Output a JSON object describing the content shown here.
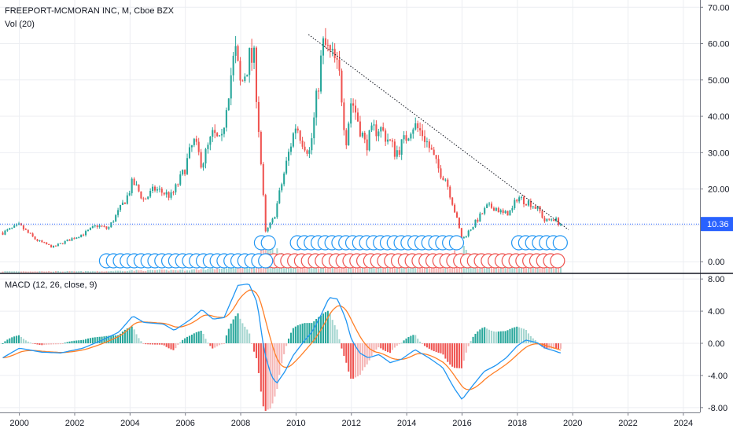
{
  "legend": {
    "title": "FREEPORT-MCMORAN INC, M, Cboe BZX",
    "volume": "Vol (20)",
    "macd": "MACD (12, 26, close, 9)"
  },
  "price_badge": "10.36",
  "colors": {
    "up": "#26a69a",
    "down": "#ef5350",
    "vol_up": "#a5d6d0",
    "vol_down": "#f5b5b5",
    "macd_line": "#2196f3",
    "signal_line": "#ff7f27",
    "price_line": "#2962ff",
    "trend_line": "#131722",
    "grid": "#eceef2",
    "axis_text": "#131722",
    "event_blue": "#2196f3",
    "event_red": "#ef5350"
  },
  "chart_data": [
    {
      "type": "candlestick",
      "name": "price",
      "y_ticks": [
        "70.00",
        "60.00",
        "50.00",
        "40.00",
        "30.00",
        "20.00",
        "10.00",
        "0.00"
      ],
      "y_range": [
        -3,
        72
      ],
      "x_range": [
        1999.3,
        2024.6
      ],
      "x_ticks": [
        "2000",
        "2002",
        "2004",
        "2006",
        "2008",
        "2010",
        "2012",
        "2014",
        "2016",
        "2018",
        "2020",
        "2022",
        "2024"
      ],
      "last_price": 10.36,
      "anchors": [
        [
          1999.4,
          8
        ],
        [
          2000.0,
          10
        ],
        [
          2000.6,
          6
        ],
        [
          2001.2,
          4
        ],
        [
          2001.8,
          6
        ],
        [
          2002.4,
          8
        ],
        [
          2002.8,
          10
        ],
        [
          2003.2,
          9
        ],
        [
          2003.6,
          14
        ],
        [
          2003.9,
          18
        ],
        [
          2004.1,
          22
        ],
        [
          2004.5,
          17
        ],
        [
          2004.9,
          20
        ],
        [
          2005.5,
          18
        ],
        [
          2005.9,
          24
        ],
        [
          2006.3,
          33
        ],
        [
          2006.6,
          27
        ],
        [
          2007.0,
          35
        ],
        [
          2007.3,
          32
        ],
        [
          2007.5,
          45
        ],
        [
          2007.8,
          58
        ],
        [
          2008.0,
          48
        ],
        [
          2008.3,
          56
        ],
        [
          2008.5,
          55
        ],
        [
          2008.75,
          25
        ],
        [
          2008.9,
          8
        ],
        [
          2009.2,
          12
        ],
        [
          2009.5,
          22
        ],
        [
          2009.8,
          32
        ],
        [
          2010.0,
          38
        ],
        [
          2010.2,
          34
        ],
        [
          2010.5,
          30
        ],
        [
          2010.7,
          42
        ],
        [
          2010.9,
          55
        ],
        [
          2011.0,
          60
        ],
        [
          2011.2,
          57
        ],
        [
          2011.4,
          55
        ],
        [
          2011.6,
          50
        ],
        [
          2011.8,
          33
        ],
        [
          2012.0,
          45
        ],
        [
          2012.2,
          40
        ],
        [
          2012.5,
          32
        ],
        [
          2012.8,
          36
        ],
        [
          2013.0,
          37
        ],
        [
          2013.3,
          34
        ],
        [
          2013.6,
          30
        ],
        [
          2013.9,
          33
        ],
        [
          2014.2,
          38
        ],
        [
          2014.6,
          35
        ],
        [
          2014.9,
          30
        ],
        [
          2015.1,
          26
        ],
        [
          2015.4,
          23
        ],
        [
          2015.6,
          18
        ],
        [
          2015.8,
          12
        ],
        [
          2016.0,
          6
        ],
        [
          2016.3,
          9
        ],
        [
          2016.6,
          12
        ],
        [
          2016.9,
          15
        ],
        [
          2017.2,
          15
        ],
        [
          2017.5,
          13
        ],
        [
          2017.8,
          14
        ],
        [
          2018.0,
          18
        ],
        [
          2018.2,
          17
        ],
        [
          2018.5,
          16
        ],
        [
          2018.8,
          14
        ],
        [
          2019.0,
          11
        ],
        [
          2019.3,
          12
        ],
        [
          2019.55,
          10.36
        ]
      ]
    },
    {
      "type": "bar",
      "name": "volume",
      "anchors": [
        [
          1999.4,
          0.05
        ],
        [
          2003.0,
          0.05
        ],
        [
          2004.0,
          0.08
        ],
        [
          2006.0,
          0.1
        ],
        [
          2007.0,
          0.15
        ],
        [
          2008.0,
          0.25
        ],
        [
          2008.6,
          0.6
        ],
        [
          2008.9,
          1.0
        ],
        [
          2009.3,
          0.8
        ],
        [
          2009.8,
          0.45
        ],
        [
          2010.5,
          0.35
        ],
        [
          2011.5,
          0.35
        ],
        [
          2012.5,
          0.3
        ],
        [
          2013.5,
          0.3
        ],
        [
          2014.5,
          0.3
        ],
        [
          2015.5,
          0.55
        ],
        [
          2016.0,
          0.85
        ],
        [
          2016.5,
          0.7
        ],
        [
          2017.0,
          0.45
        ],
        [
          2018.0,
          0.3
        ],
        [
          2019.0,
          0.25
        ],
        [
          2019.55,
          0.25
        ]
      ]
    },
    {
      "type": "line",
      "name": "macd",
      "y_ticks": [
        "8.00",
        "4.00",
        "0.00",
        "-4.00",
        "-8.00"
      ],
      "y_range": [
        -8.6,
        8.6
      ],
      "macd_anchors": [
        [
          1999.4,
          -1.8
        ],
        [
          2000.0,
          -0.6
        ],
        [
          2000.8,
          -1.1
        ],
        [
          2001.5,
          -1.2
        ],
        [
          2002.3,
          -0.6
        ],
        [
          2003.0,
          0.4
        ],
        [
          2003.6,
          1.4
        ],
        [
          2004.1,
          3.4
        ],
        [
          2004.5,
          2.6
        ],
        [
          2005.2,
          2.4
        ],
        [
          2005.6,
          1.6
        ],
        [
          2006.2,
          3.0
        ],
        [
          2006.6,
          4.2
        ],
        [
          2007.0,
          3.0
        ],
        [
          2007.4,
          3.2
        ],
        [
          2007.6,
          4.8
        ],
        [
          2007.9,
          7.2
        ],
        [
          2008.3,
          7.4
        ],
        [
          2008.6,
          5.0
        ],
        [
          2008.85,
          -1.0
        ],
        [
          2009.1,
          -4.0
        ],
        [
          2009.3,
          -5.0
        ],
        [
          2009.6,
          -3.5
        ],
        [
          2009.9,
          -1.5
        ],
        [
          2010.3,
          0.3
        ],
        [
          2010.6,
          1.5
        ],
        [
          2010.9,
          3.5
        ],
        [
          2011.2,
          5.7
        ],
        [
          2011.5,
          5.5
        ],
        [
          2011.8,
          3.0
        ],
        [
          2012.0,
          0.5
        ],
        [
          2012.3,
          -1.2
        ],
        [
          2012.6,
          -1.8
        ],
        [
          2013.0,
          -1.4
        ],
        [
          2013.4,
          -2.4
        ],
        [
          2013.8,
          -2.0
        ],
        [
          2014.3,
          -0.8
        ],
        [
          2014.8,
          -1.8
        ],
        [
          2015.3,
          -3.0
        ],
        [
          2015.7,
          -5.5
        ],
        [
          2016.0,
          -7.0
        ],
        [
          2016.4,
          -5.2
        ],
        [
          2016.8,
          -3.5
        ],
        [
          2017.2,
          -2.8
        ],
        [
          2017.6,
          -1.8
        ],
        [
          2018.0,
          -0.3
        ],
        [
          2018.3,
          0.4
        ],
        [
          2018.7,
          0.1
        ],
        [
          2019.0,
          -0.6
        ],
        [
          2019.3,
          -0.9
        ],
        [
          2019.55,
          -1.2
        ]
      ]
    }
  ]
}
